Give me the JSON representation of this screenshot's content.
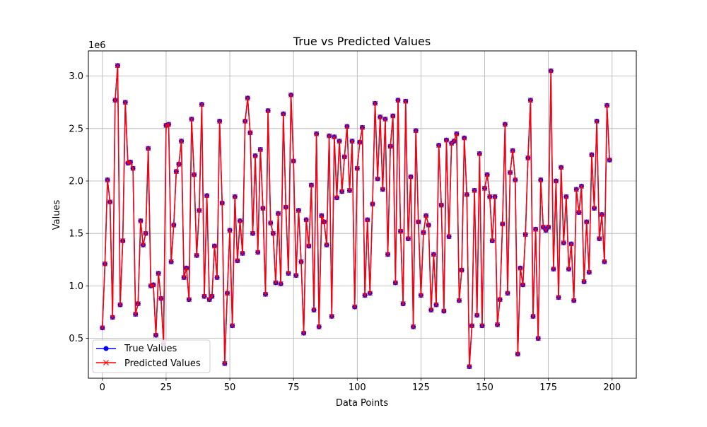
{
  "chart_data": {
    "type": "line",
    "title": "True vs Predicted Values",
    "xlabel": "Data Points",
    "ylabel": "Values",
    "offset_text": "1e6",
    "xlim": [
      -5.5,
      209.5
    ],
    "ylim": [
      120000,
      3240000
    ],
    "xticks": [
      0,
      25,
      50,
      75,
      100,
      125,
      150,
      175,
      200
    ],
    "yticks": [
      500000,
      1000000,
      1500000,
      2000000,
      2500000,
      3000000
    ],
    "ytick_labels": [
      "0.5",
      "1.0",
      "1.5",
      "2.0",
      "2.5",
      "3.0"
    ],
    "grid": true,
    "legend_position": "lower-left",
    "x": [
      0,
      1,
      2,
      3,
      4,
      5,
      6,
      7,
      8,
      9,
      10,
      11,
      12,
      13,
      14,
      15,
      16,
      17,
      18,
      19,
      20,
      21,
      22,
      23,
      24,
      25,
      26,
      27,
      28,
      29,
      30,
      31,
      32,
      33,
      34,
      35,
      36,
      37,
      38,
      39,
      40,
      41,
      42,
      43,
      44,
      45,
      46,
      47,
      48,
      49,
      50,
      51,
      52,
      53,
      54,
      55,
      56,
      57,
      58,
      59,
      60,
      61,
      62,
      63,
      64,
      65,
      66,
      67,
      68,
      69,
      70,
      71,
      72,
      73,
      74,
      75,
      76,
      77,
      78,
      79,
      80,
      81,
      82,
      83,
      84,
      85,
      86,
      87,
      88,
      89,
      90,
      91,
      92,
      93,
      94,
      95,
      96,
      97,
      98,
      99,
      100,
      101,
      102,
      103,
      104,
      105,
      106,
      107,
      108,
      109,
      110,
      111,
      112,
      113,
      114,
      115,
      116,
      117,
      118,
      119,
      120,
      121,
      122,
      123,
      124,
      125,
      126,
      127,
      128,
      129,
      130,
      131,
      132,
      133,
      134,
      135,
      136,
      137,
      138,
      139,
      140,
      141,
      142,
      143,
      144,
      145,
      146,
      147,
      148,
      149,
      150,
      151,
      152,
      153,
      154,
      155,
      156,
      157,
      158,
      159,
      160,
      161,
      162,
      163,
      164,
      165,
      166,
      167,
      168,
      169,
      170,
      171,
      172,
      173,
      174,
      175,
      176,
      177,
      178,
      179,
      180,
      181,
      182,
      183,
      184,
      185,
      186,
      187,
      188,
      189,
      190,
      191,
      192,
      193,
      194,
      195,
      196,
      197,
      198,
      199
    ],
    "series": [
      {
        "name": "True Values",
        "color": "#0000ff",
        "marker": "circle",
        "values": [
          600000,
          1210000,
          2010000,
          1800000,
          700000,
          2770000,
          3100000,
          820000,
          1430000,
          2750000,
          2170000,
          2180000,
          2120000,
          730000,
          830000,
          1620000,
          1390000,
          1500000,
          2310000,
          1000000,
          1010000,
          530000,
          1120000,
          880000,
          450000,
          2530000,
          2540000,
          1230000,
          1580000,
          2090000,
          2160000,
          2380000,
          1080000,
          1170000,
          870000,
          2590000,
          2060000,
          1290000,
          1720000,
          2730000,
          900000,
          1860000,
          870000,
          900000,
          1380000,
          1080000,
          2570000,
          1790000,
          260000,
          930000,
          1530000,
          620000,
          1850000,
          1240000,
          1620000,
          1310000,
          2570000,
          2790000,
          2460000,
          1500000,
          2240000,
          1320000,
          2300000,
          1740000,
          920000,
          2670000,
          1600000,
          1500000,
          1030000,
          1690000,
          1020000,
          2640000,
          1750000,
          1120000,
          2820000,
          2190000,
          1100000,
          1720000,
          1230000,
          550000,
          1630000,
          1380000,
          1960000,
          770000,
          2450000,
          610000,
          1670000,
          1610000,
          1390000,
          2430000,
          710000,
          2420000,
          1840000,
          2380000,
          1900000,
          2230000,
          2520000,
          1910000,
          2380000,
          800000,
          2120000,
          2370000,
          2510000,
          910000,
          1630000,
          930000,
          1780000,
          2740000,
          2020000,
          2610000,
          1920000,
          2590000,
          1300000,
          2330000,
          2620000,
          1030000,
          2770000,
          1520000,
          830000,
          2760000,
          1450000,
          2040000,
          610000,
          2480000,
          1610000,
          910000,
          1510000,
          1670000,
          1580000,
          770000,
          1300000,
          820000,
          2340000,
          1770000,
          760000,
          2390000,
          1470000,
          2360000,
          2380000,
          2450000,
          860000,
          1150000,
          2410000,
          1870000,
          230000,
          620000,
          1910000,
          720000,
          2260000,
          620000,
          1930000,
          2060000,
          1850000,
          1430000,
          1850000,
          630000,
          870000,
          1590000,
          2540000,
          930000,
          2080000,
          2290000,
          2010000,
          350000,
          1170000,
          1010000,
          1490000,
          2220000,
          2770000,
          710000,
          1540000,
          500000,
          2010000,
          1560000,
          1530000,
          1560000,
          3050000,
          1160000,
          2000000,
          890000,
          2130000,
          1410000,
          1850000,
          1160000,
          1400000,
          860000,
          1920000,
          1700000,
          1950000,
          1040000,
          1610000,
          1130000,
          2250000,
          1740000,
          2570000,
          1450000,
          1680000,
          1230000,
          2720000,
          2200000
        ]
      },
      {
        "name": "Predicted Values",
        "color": "#ff0000",
        "marker": "x",
        "values": [
          600000,
          1210000,
          2010000,
          1800000,
          700000,
          2770000,
          3100000,
          820000,
          1430000,
          2750000,
          2170000,
          2180000,
          2120000,
          730000,
          830000,
          1620000,
          1390000,
          1500000,
          2310000,
          1000000,
          1010000,
          530000,
          1120000,
          880000,
          450000,
          2530000,
          2540000,
          1230000,
          1580000,
          2090000,
          2160000,
          2380000,
          1080000,
          1170000,
          870000,
          2590000,
          2060000,
          1290000,
          1720000,
          2730000,
          900000,
          1860000,
          870000,
          900000,
          1380000,
          1080000,
          2570000,
          1790000,
          260000,
          930000,
          1530000,
          620000,
          1850000,
          1240000,
          1620000,
          1310000,
          2570000,
          2790000,
          2460000,
          1500000,
          2240000,
          1320000,
          2300000,
          1740000,
          920000,
          2670000,
          1600000,
          1500000,
          1030000,
          1690000,
          1020000,
          2640000,
          1750000,
          1120000,
          2820000,
          2190000,
          1100000,
          1720000,
          1230000,
          550000,
          1630000,
          1380000,
          1960000,
          770000,
          2450000,
          610000,
          1670000,
          1610000,
          1390000,
          2430000,
          710000,
          2420000,
          1840000,
          2380000,
          1900000,
          2230000,
          2520000,
          1910000,
          2380000,
          800000,
          2120000,
          2370000,
          2510000,
          910000,
          1630000,
          930000,
          1780000,
          2740000,
          2020000,
          2610000,
          1920000,
          2590000,
          1300000,
          2330000,
          2620000,
          1030000,
          2770000,
          1520000,
          830000,
          2760000,
          1450000,
          2040000,
          610000,
          2480000,
          1610000,
          910000,
          1510000,
          1670000,
          1580000,
          770000,
          1300000,
          820000,
          2340000,
          1770000,
          760000,
          2390000,
          1470000,
          2360000,
          2380000,
          2450000,
          860000,
          1150000,
          2410000,
          1870000,
          230000,
          620000,
          1910000,
          720000,
          2260000,
          620000,
          1930000,
          2060000,
          1850000,
          1430000,
          1850000,
          630000,
          870000,
          1590000,
          2540000,
          930000,
          2080000,
          2290000,
          2010000,
          350000,
          1170000,
          1010000,
          1490000,
          2220000,
          2770000,
          710000,
          1540000,
          500000,
          2010000,
          1560000,
          1530000,
          1560000,
          3050000,
          1160000,
          2000000,
          890000,
          2130000,
          1410000,
          1850000,
          1160000,
          1400000,
          860000,
          1920000,
          1700000,
          1950000,
          1040000,
          1610000,
          1130000,
          2250000,
          1740000,
          2570000,
          1450000,
          1680000,
          1230000,
          2720000,
          2200000
        ]
      }
    ]
  }
}
